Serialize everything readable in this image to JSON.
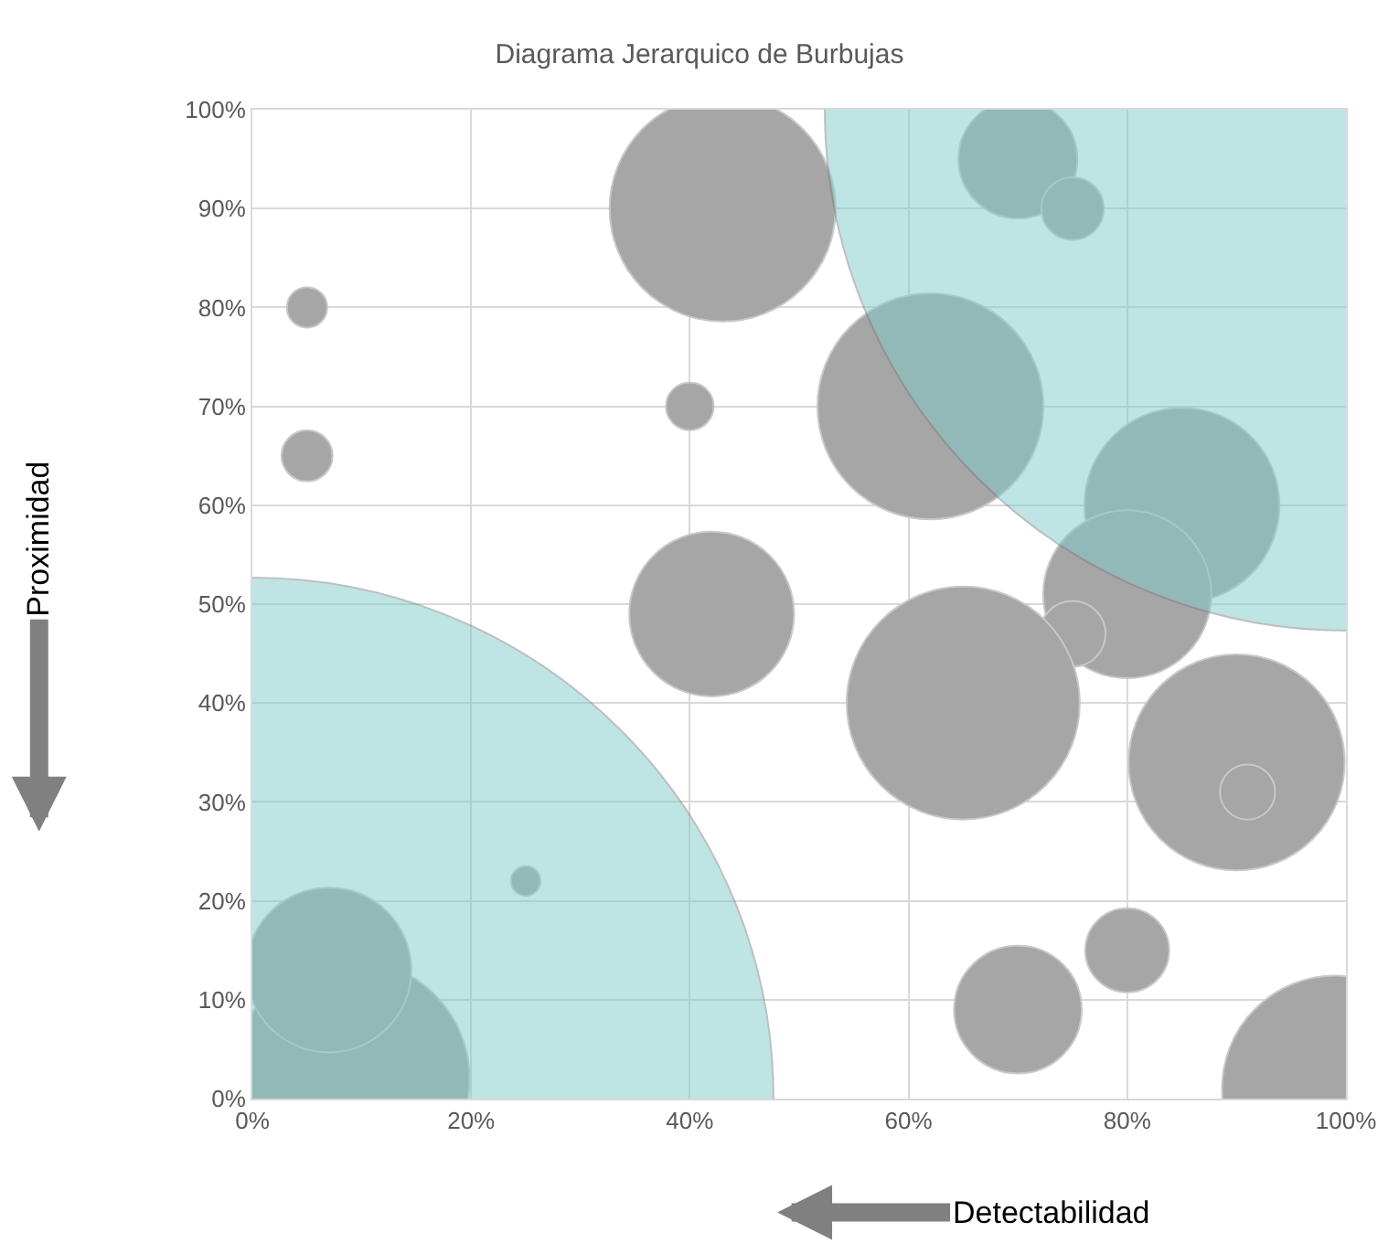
{
  "chart_data": {
    "type": "bubble",
    "title": "Diagrama Jerarquico de Burbujas",
    "xlabel": "Detectabilidad",
    "ylabel": "Proximidad",
    "series": [
      {
        "color": "#a6a6a6",
        "x": [
          9,
          7,
          43,
          62,
          85,
          80,
          75,
          65,
          90,
          91,
          42,
          70,
          75,
          5,
          5,
          40,
          25,
          80,
          70,
          99
        ],
        "values": [
          2,
          13,
          90,
          70,
          60,
          51,
          47,
          40,
          34,
          31,
          49,
          95,
          90,
          80,
          65,
          70,
          22,
          15,
          9,
          1
        ],
        "sizes": [
          0.052,
          0.025,
          0.047,
          0.047,
          0.035,
          0.026,
          0.004,
          0.05,
          0.043,
          0.0028,
          0.025,
          0.013,
          0.0036,
          0.0015,
          0.0024,
          0.0021,
          0.0008,
          0.0065,
          0.015,
          0.047
        ]
      },
      {
        "color": "#7fcaca",
        "x": [
          0,
          100
        ],
        "values": [
          0,
          100
        ],
        "sizes": [
          1,
          1
        ]
      }
    ],
    "xlim": [
      0,
      100
    ],
    "ylim": [
      0,
      100
    ],
    "xticks": [
      {
        "value": 0,
        "label": "0%"
      },
      {
        "value": 20,
        "label": "20%"
      },
      {
        "value": 40,
        "label": "40%"
      },
      {
        "value": 60,
        "label": "60%"
      },
      {
        "value": 80,
        "label": "80%"
      },
      {
        "value": 100,
        "label": "100%"
      }
    ],
    "yticks": [
      {
        "value": 0,
        "label": "0%"
      },
      {
        "value": 10,
        "label": "10%"
      },
      {
        "value": 20,
        "label": "20%"
      },
      {
        "value": 30,
        "label": "30%"
      },
      {
        "value": 40,
        "label": "40%"
      },
      {
        "value": 50,
        "label": "50%"
      },
      {
        "value": 60,
        "label": "60%"
      },
      {
        "value": 70,
        "label": "70%"
      },
      {
        "value": 80,
        "label": "80%"
      },
      {
        "value": 90,
        "label": "90%"
      },
      {
        "value": 100,
        "label": "100%"
      }
    ],
    "grid": true
  }
}
